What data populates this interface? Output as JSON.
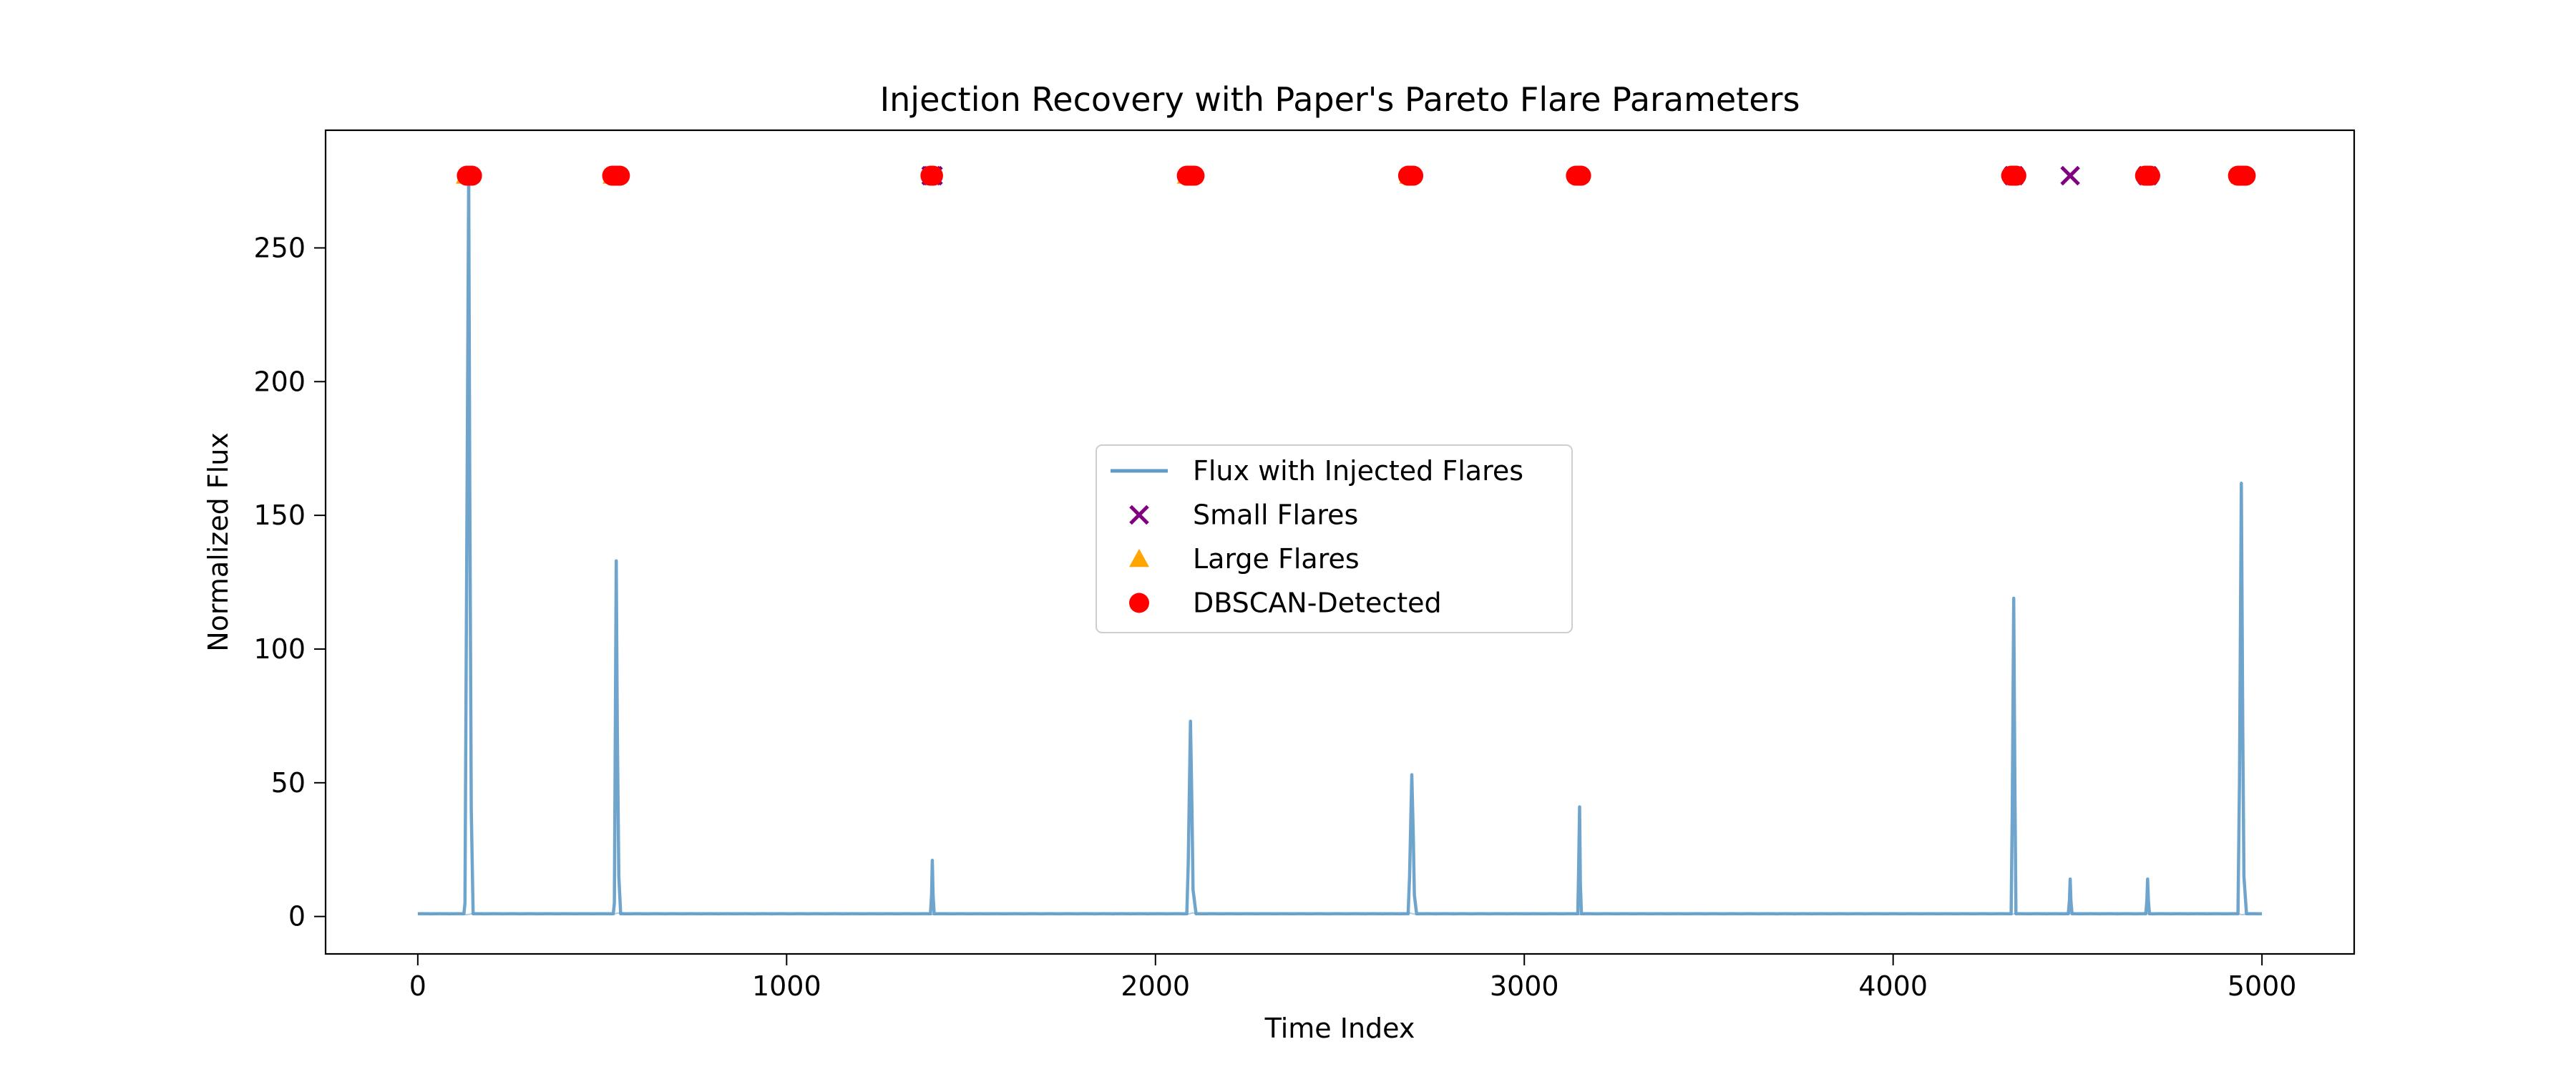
{
  "chart_data": {
    "type": "line",
    "title": "Injection Recovery with Paper's Pareto Flare Parameters",
    "xlabel": "Time Index",
    "ylabel": "Normalized Flux",
    "xlim": [
      -250,
      5250
    ],
    "ylim": [
      -14,
      294
    ],
    "x_ticks": [
      {
        "value": 0,
        "label": "0"
      },
      {
        "value": 1000,
        "label": "1000"
      },
      {
        "value": 2000,
        "label": "2000"
      },
      {
        "value": 3000,
        "label": "3000"
      },
      {
        "value": 4000,
        "label": "4000"
      },
      {
        "value": 5000,
        "label": "5000"
      }
    ],
    "y_ticks": [
      {
        "value": 0,
        "label": "0"
      },
      {
        "value": 50,
        "label": "50"
      },
      {
        "value": 100,
        "label": "100"
      },
      {
        "value": 150,
        "label": "150"
      },
      {
        "value": 200,
        "label": "200"
      },
      {
        "value": 250,
        "label": "250"
      }
    ],
    "grid": false,
    "legend_position": "center",
    "baseline_value": 1,
    "series": [
      {
        "name": "Flux with Injected Flares",
        "kind": "line",
        "color": "#5f9bc8",
        "x": [
          0,
          125,
          128,
          138,
          141,
          145,
          150,
          530,
          533,
          538,
          541,
          545,
          550,
          1390,
          1393,
          1395,
          1397,
          1400,
          2085,
          2089,
          2095,
          2099,
          2102,
          2110,
          2685,
          2689,
          2695,
          2699,
          2702,
          2708,
          3145,
          3147,
          3150,
          3152,
          3155,
          4320,
          4323,
          4327,
          4330,
          4333,
          4475,
          4478,
          4480,
          4482,
          4485,
          4685,
          4688,
          4690,
          4692,
          4695,
          4935,
          4939,
          4944,
          4948,
          4951,
          4958,
          5000
        ],
        "y": [
          1,
          1,
          5,
          277,
          160,
          40,
          1,
          1,
          5,
          133,
          70,
          15,
          1,
          1,
          8,
          21,
          8,
          1,
          1,
          20,
          73,
          40,
          10,
          1,
          1,
          15,
          53,
          30,
          8,
          1,
          1,
          15,
          41,
          12,
          1,
          1,
          40,
          119,
          50,
          1,
          1,
          6,
          14,
          6,
          1,
          1,
          6,
          14,
          6,
          1,
          1,
          50,
          162,
          70,
          15,
          1,
          1
        ]
      },
      {
        "name": "Small Flares",
        "kind": "scatter",
        "marker": "x",
        "color": "#800080",
        "x": [
          1392,
          1397,
          4327,
          4480,
          4690
        ],
        "y": [
          277,
          277,
          277,
          277,
          277
        ]
      },
      {
        "name": "Large Flares",
        "kind": "scatter",
        "marker": "triangle",
        "color": "#ffa500",
        "x": [
          130,
          528,
          2085,
          2688,
          4942
        ],
        "y": [
          277,
          277,
          277,
          277,
          277
        ]
      },
      {
        "name": "DBSCAN-Detected",
        "kind": "scatter",
        "marker": "circle",
        "color": "#ff0000",
        "x": [
          133,
          140,
          147,
          527,
          534,
          541,
          548,
          1390,
          1397,
          2085,
          2092,
          2099,
          2106,
          2685,
          2692,
          2699,
          3140,
          3147,
          3154,
          4320,
          4327,
          4334,
          4683,
          4690,
          4697,
          4935,
          4942,
          4949,
          4956
        ],
        "y": [
          277,
          277,
          277,
          277,
          277,
          277,
          277,
          277,
          277,
          277,
          277,
          277,
          277,
          277,
          277,
          277,
          277,
          277,
          277,
          277,
          277,
          277,
          277,
          277,
          277,
          277,
          277,
          277,
          277
        ]
      }
    ]
  }
}
